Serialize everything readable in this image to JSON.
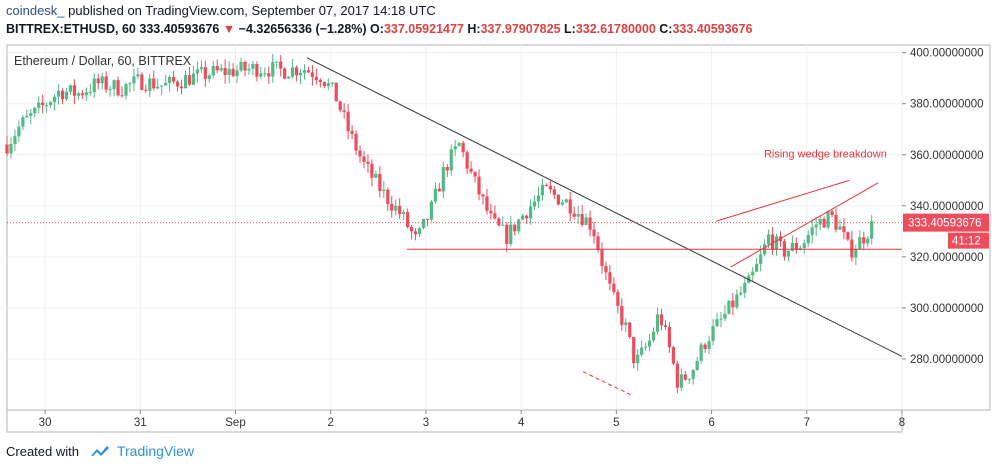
{
  "header": {
    "author": "coindesk_",
    "published": "published on TradingView.com, September 07, 2017 14:18 UTC",
    "symbol": "BITTREX:ETHUSD, 60",
    "last": "333.40593676",
    "arrow": "▼",
    "change": "−4.32656336 (−1.28%)",
    "o_label": "O:",
    "o_val": "337.05921477",
    "h_label": "H:",
    "h_val": "337.97907825",
    "l_label": "L:",
    "l_val": "332.61780000",
    "c_label": "C:",
    "c_val": "333.40593676"
  },
  "footer": {
    "created_with": "Created with",
    "brand": "TradingView"
  },
  "colors": {
    "up": "#53b987",
    "down": "#eb4d5c",
    "annotation": "#e8353d",
    "trendline": "#333333"
  },
  "chart_data": {
    "type": "candlestick",
    "title": "Ethereum / Dollar, 60, BITTREX",
    "ylim": [
      260,
      403
    ],
    "y_ticks": [
      {
        "value": 400,
        "label": "400.00000000"
      },
      {
        "value": 380,
        "label": "380.00000000"
      },
      {
        "value": 360,
        "label": "360.00000000"
      },
      {
        "value": 340,
        "label": "340.00000000"
      },
      {
        "value": 320,
        "label": "320.00000000"
      },
      {
        "value": 300,
        "label": "300.00000000"
      },
      {
        "value": 280,
        "label": "280.00000000"
      }
    ],
    "x_ticks": [
      {
        "x": 0.5,
        "label": "30"
      },
      {
        "x": 1.5,
        "label": "31"
      },
      {
        "x": 2.5,
        "label": "Sep"
      },
      {
        "x": 3.5,
        "label": "2"
      },
      {
        "x": 4.5,
        "label": "3"
      },
      {
        "x": 5.5,
        "label": "4"
      },
      {
        "x": 6.5,
        "label": "5"
      },
      {
        "x": 7.5,
        "label": "6"
      },
      {
        "x": 8.5,
        "label": "7"
      },
      {
        "x": 9.5,
        "label": "8"
      }
    ],
    "xlim": [
      0.1,
      9.5
    ],
    "last_price": {
      "value": 333.40593676,
      "label": "333.40593676",
      "countdown": "41:12"
    },
    "path_points": [
      [
        0.1,
        364
      ],
      [
        0.25,
        372
      ],
      [
        0.45,
        378
      ],
      [
        0.65,
        385
      ],
      [
        0.85,
        384
      ],
      [
        1.05,
        388
      ],
      [
        1.3,
        386
      ],
      [
        1.5,
        389
      ],
      [
        1.75,
        387
      ],
      [
        2.0,
        390
      ],
      [
        2.25,
        392
      ],
      [
        2.5,
        393
      ],
      [
        2.75,
        394
      ],
      [
        3.0,
        393
      ],
      [
        3.2,
        394
      ],
      [
        3.4,
        391
      ],
      [
        3.55,
        383
      ],
      [
        3.7,
        368
      ],
      [
        3.85,
        356
      ],
      [
        4.05,
        345
      ],
      [
        4.25,
        336
      ],
      [
        4.4,
        326
      ],
      [
        4.55,
        338
      ],
      [
        4.7,
        355
      ],
      [
        4.85,
        364
      ],
      [
        5.0,
        350
      ],
      [
        5.2,
        333
      ],
      [
        5.35,
        328
      ],
      [
        5.55,
        338
      ],
      [
        5.75,
        346
      ],
      [
        6.0,
        341
      ],
      [
        6.25,
        332
      ],
      [
        6.35,
        318
      ],
      [
        6.45,
        305
      ],
      [
        6.6,
        292
      ],
      [
        6.7,
        278
      ],
      [
        6.85,
        287
      ],
      [
        6.95,
        298
      ],
      [
        7.05,
        285
      ],
      [
        7.15,
        270
      ],
      [
        7.3,
        276
      ],
      [
        7.45,
        288
      ],
      [
        7.6,
        295
      ],
      [
        7.75,
        303
      ],
      [
        7.9,
        310
      ],
      [
        8.0,
        318
      ],
      [
        8.1,
        328
      ],
      [
        8.25,
        322
      ],
      [
        8.45,
        325
      ],
      [
        8.6,
        333
      ],
      [
        8.75,
        336
      ],
      [
        8.85,
        331
      ],
      [
        8.95,
        322
      ],
      [
        9.1,
        328
      ],
      [
        9.2,
        333
      ]
    ],
    "annotations": {
      "downtrend_line": {
        "x1": 3.25,
        "y1": 398,
        "x2": 9.5,
        "y2": 281
      },
      "support_line": {
        "x1": 4.3,
        "y1": 323,
        "x2": 9.5,
        "y2": 323
      },
      "wedge_upper": {
        "x1": 7.55,
        "y1": 334,
        "x2": 8.95,
        "y2": 350
      },
      "wedge_lower": {
        "x1": 7.7,
        "y1": 316,
        "x2": 9.25,
        "y2": 349
      },
      "dashed_lower": {
        "x1": 6.15,
        "y1": 275,
        "x2": 6.65,
        "y2": 266
      },
      "label": {
        "x": 8.05,
        "y": 359,
        "text": "Rising wedge breakdown"
      }
    }
  }
}
